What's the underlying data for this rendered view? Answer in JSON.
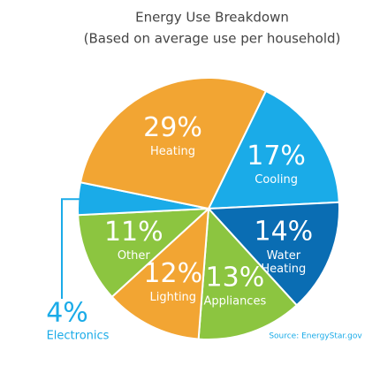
{
  "chart_data": {
    "type": "pie",
    "title": "Energy Use Breakdown",
    "subtitle": "(Based on average use per household)",
    "categories": [
      "Cooling",
      "Water Heating",
      "Appliances",
      "Lighting",
      "Other",
      "Electronics",
      "Heating"
    ],
    "values": [
      17,
      14,
      13,
      12,
      11,
      4,
      29
    ],
    "value_labels": [
      "17%",
      "14%",
      "13%",
      "12%",
      "11%",
      "4%",
      "29%"
    ],
    "colors": [
      "#1aabe8",
      "#0a6db3",
      "#8cc540",
      "#f2a533",
      "#8cc540",
      "#1aabe8",
      "#f2a533"
    ],
    "source": "Source: EnergyStar.gov"
  }
}
